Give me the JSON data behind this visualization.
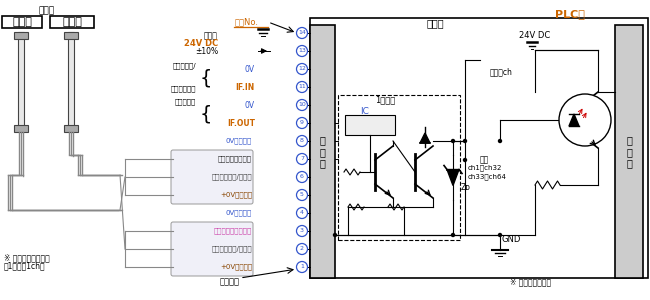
{
  "bg_color": "#ffffff",
  "orange_color": "#cc6600",
  "blue_color": "#3355cc",
  "red_color": "#cc0000",
  "dark_color": "#222222",
  "sensor_label": "感測器",
  "emitter_label": "投光器",
  "receiver_label": "受光器",
  "terminal_label": "端子No.",
  "control_board_label": "控制板",
  "plc_label": "PLC等",
  "main_circuit_v": "主\n電\n路",
  "wire_color_label": "導線顏色",
  "sensor_note_1": "※ 感測器的電線側為",
  "sensor_note_2": "第1光軸（1ch）",
  "single_output_note": "※ 單輸出的電路例",
  "ic_label": "IC",
  "one_channel_label": "1個通道",
  "to_other_ch": "至其它ch",
  "output_label": "輸出",
  "gnd_label": "GND",
  "ch_label_1": "ch1～ch32",
  "ch_label_2": "ch33～ch64",
  "zd_label": "Zᴅ",
  "dc24_label": "24V DC",
  "sensor_dc_label": "24V DC",
  "sensor_pm_label": "±10%",
  "sensor_sensor_label": "感測器"
}
